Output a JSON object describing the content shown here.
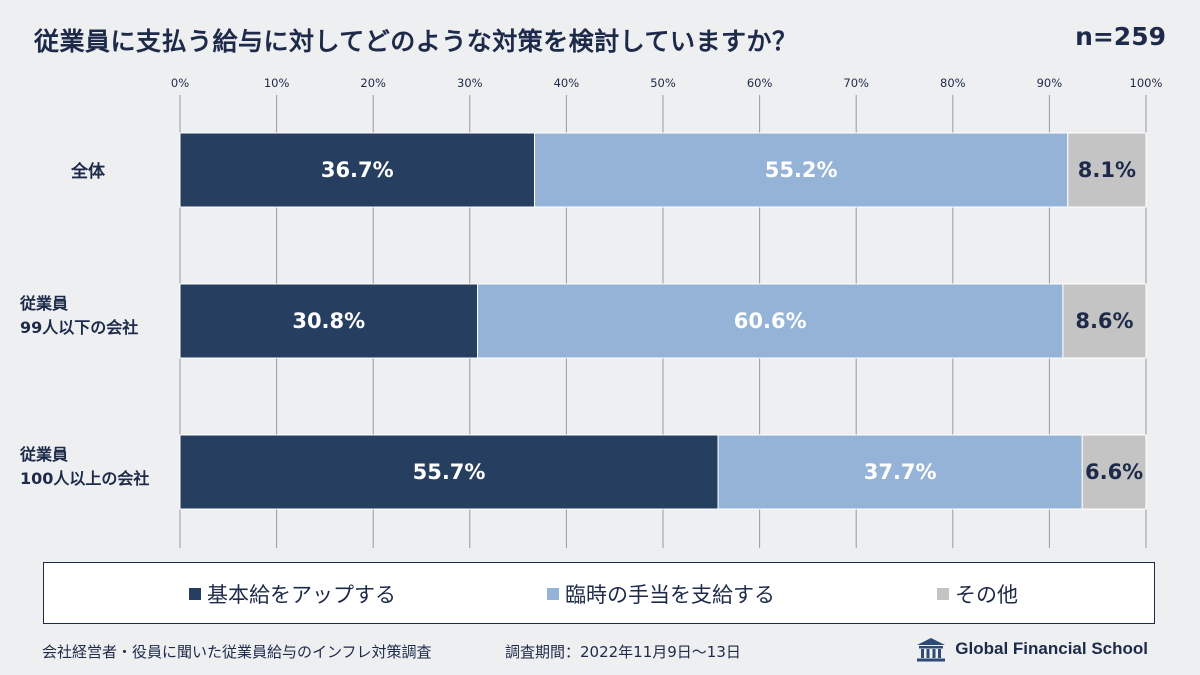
{
  "header": {
    "title": "従業員に支払う給与に対してどのような対策を検討していますか？",
    "n": "n=259"
  },
  "chart_data": {
    "type": "bar",
    "orientation": "horizontal",
    "stacked": true,
    "title": "従業員に支払う給与に対してどのような対策を検討していますか？",
    "xlim": [
      0,
      100
    ],
    "x_ticks": [
      "0%",
      "10%",
      "20%",
      "30%",
      "40%",
      "50%",
      "60%",
      "70%",
      "80%",
      "90%",
      "100%"
    ],
    "grid": "vertical",
    "legend_position": "bottom",
    "categories": [
      {
        "lines": [
          "全体"
        ]
      },
      {
        "lines": [
          "従業員",
          "99人以下の会社"
        ]
      },
      {
        "lines": [
          "従業員",
          "100人以上の会社"
        ]
      }
    ],
    "series": [
      {
        "name": "基本給をアップする",
        "color": "#263e60",
        "text_color": "#ffffff",
        "values": [
          36.7,
          30.8,
          55.7
        ]
      },
      {
        "name": "臨時の手当を支給する",
        "color": "#95b3d7",
        "text_color": "#ffffff",
        "values": [
          55.2,
          60.6,
          37.7
        ]
      },
      {
        "name": "その他",
        "color": "#c4c4c4",
        "text_color": "#1d2a49",
        "values": [
          8.1,
          8.6,
          6.6
        ]
      }
    ],
    "value_format": "{v}%"
  },
  "footer": {
    "note": "会社経営者・役員に聞いた従業員給与のインフレ対策調査",
    "period": "調査期間：2022年11月9日〜13日",
    "brand": "Global Financial School",
    "brand_icon": "school-building-icon"
  }
}
